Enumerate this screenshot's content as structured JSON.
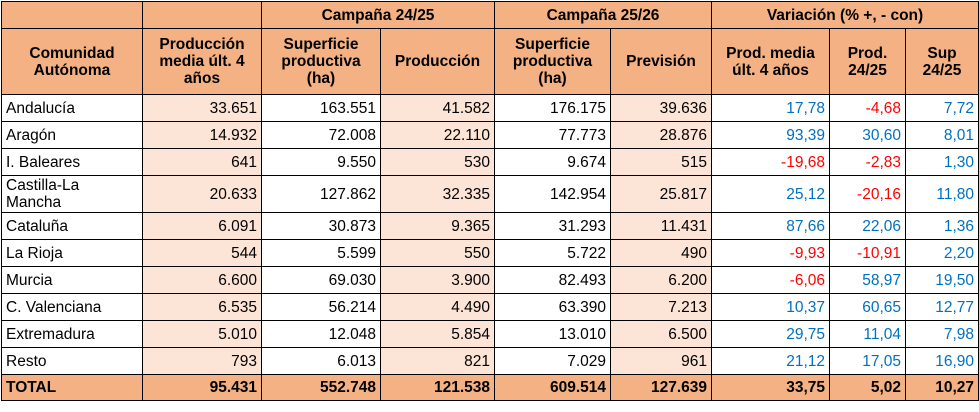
{
  "header": {
    "campaign_1": "Campaña 24/25",
    "campaign_2": "Campaña 25/26",
    "variation": "Variación (% +, - con)",
    "col_region": "Comunidad Autónoma",
    "col_avg_prod": "Producción media últ. 4 años",
    "col_surface_1": "Superficie productiva (ha)",
    "col_production_1": "Producción",
    "col_surface_2": "Superficie productiva (ha)",
    "col_forecast": "Previsión",
    "col_var_avg": "Prod. media últ. 4 años",
    "col_var_prod": "Prod. 24/25",
    "col_var_sup": "Sup 24/25"
  },
  "rows": [
    {
      "region": "Andalucía",
      "avg": "33.651",
      "s1": "163.551",
      "p1": "41.582",
      "s2": "176.175",
      "f": "39.636",
      "v1": "17,78",
      "v2": "-4,68",
      "v3": "7,72"
    },
    {
      "region": "Aragón",
      "avg": "14.932",
      "s1": "72.008",
      "p1": "22.110",
      "s2": "77.773",
      "f": "28.876",
      "v1": "93,39",
      "v2": "30,60",
      "v3": "8,01"
    },
    {
      "region": "I. Baleares",
      "avg": "641",
      "s1": "9.550",
      "p1": "530",
      "s2": "9.674",
      "f": "515",
      "v1": "-19,68",
      "v2": "-2,83",
      "v3": "1,30"
    },
    {
      "region": "Castilla-La Mancha",
      "avg": "20.633",
      "s1": "127.862",
      "p1": "32.335",
      "s2": "142.954",
      "f": "25.817",
      "v1": "25,12",
      "v2": "-20,16",
      "v3": "11,80"
    },
    {
      "region": "Cataluña",
      "avg": "6.091",
      "s1": "30.873",
      "p1": "9.365",
      "s2": "31.293",
      "f": "11.431",
      "v1": "87,66",
      "v2": "22,06",
      "v3": "1,36"
    },
    {
      "region": "La Rioja",
      "avg": "544",
      "s1": "5.599",
      "p1": "550",
      "s2": "5.722",
      "f": "490",
      "v1": "-9,93",
      "v2": "-10,91",
      "v3": "2,20"
    },
    {
      "region": "Murcia",
      "avg": "6.600",
      "s1": "69.030",
      "p1": "3.900",
      "s2": "82.493",
      "f": "6.200",
      "v1": "-6,06",
      "v2": "58,97",
      "v3": "19,50"
    },
    {
      "region": "C. Valenciana",
      "avg": "6.535",
      "s1": "56.214",
      "p1": "4.490",
      "s2": "63.390",
      "f": "7.213",
      "v1": "10,37",
      "v2": "60,65",
      "v3": "12,77"
    },
    {
      "region": "Extremadura",
      "avg": "5.010",
      "s1": "12.048",
      "p1": "5.854",
      "s2": "13.010",
      "f": "6.500",
      "v1": "29,75",
      "v2": "11,04",
      "v3": "7,98"
    },
    {
      "region": "Resto",
      "avg": "793",
      "s1": "6.013",
      "p1": "821",
      "s2": "7.029",
      "f": "961",
      "v1": "21,12",
      "v2": "17,05",
      "v3": "16,90"
    }
  ],
  "total": {
    "region": "TOTAL",
    "avg": "95.431",
    "s1": "552.748",
    "p1": "121.538",
    "s2": "609.514",
    "f": "127.639",
    "v1": "33,75",
    "v2": "5,02",
    "v3": "10,27"
  },
  "colors": {
    "header_bg": "#f4b183",
    "row_tint": "#fce4d6",
    "positive": "#0070c0",
    "negative": "#ff0000"
  }
}
